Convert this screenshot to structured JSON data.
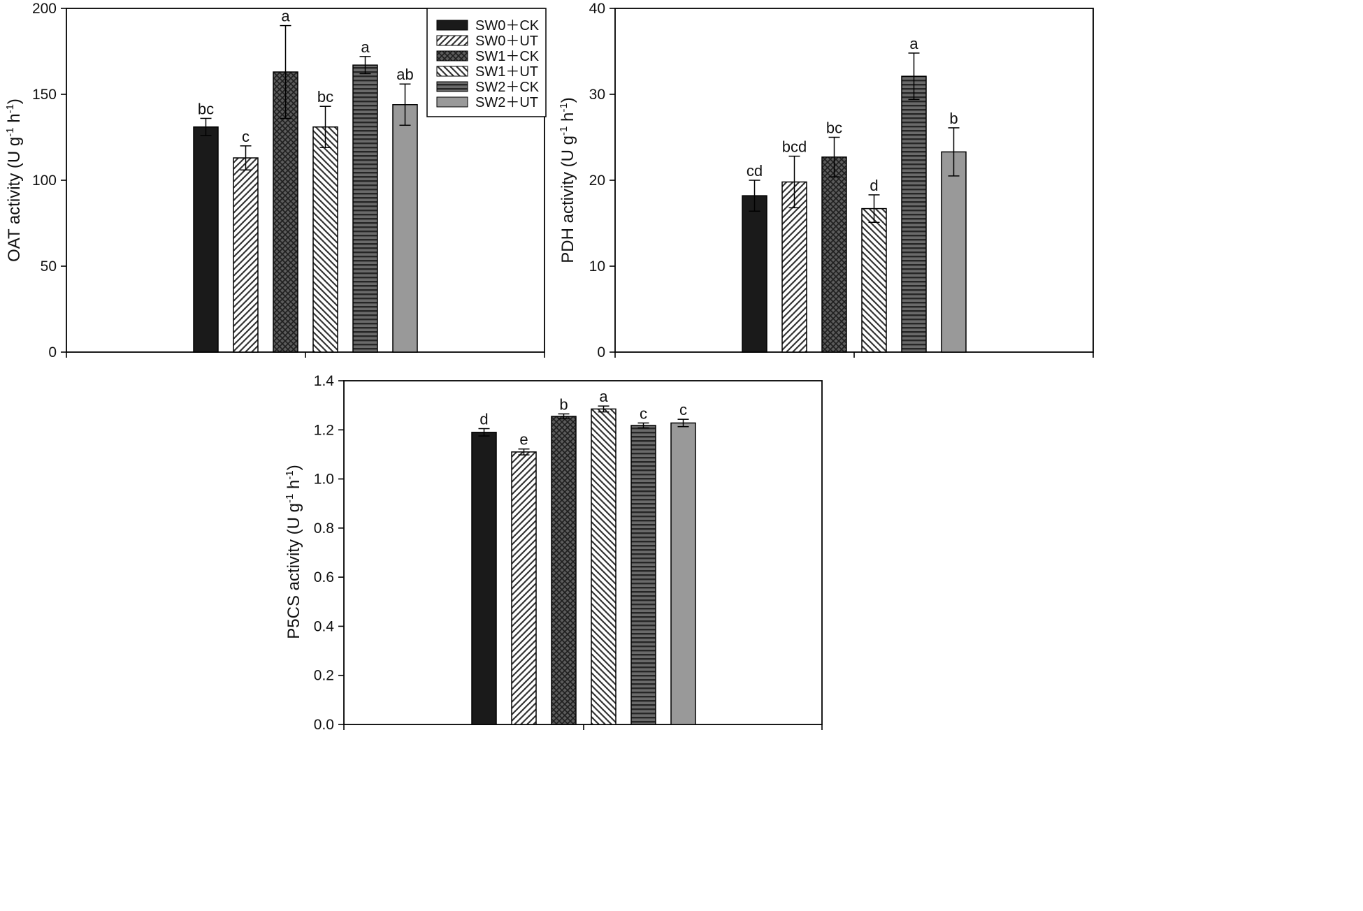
{
  "legend": {
    "entries": [
      {
        "label": "SW0＋CK",
        "pattern": "solid-black"
      },
      {
        "label": "SW0＋UT",
        "pattern": "diag-fwd"
      },
      {
        "label": "SW1＋CK",
        "pattern": "crosshatch"
      },
      {
        "label": "SW1＋UT",
        "pattern": "diag-back"
      },
      {
        "label": "SW2＋CK",
        "pattern": "horizontal"
      },
      {
        "label": "SW2＋UT",
        "pattern": "solid-gray"
      }
    ]
  },
  "chart_data": [
    {
      "type": "bar",
      "id": "oat",
      "ylabel": "OAT activity (U g-1 h-1)",
      "ylabel_parts": {
        "main": "OAT activity (U g",
        "sup1": "-1",
        "mid": " h",
        "sup2": "-1",
        "end": ")"
      },
      "ylim": [
        0,
        200
      ],
      "yticks": [
        "0",
        "50",
        "100",
        "150",
        "200"
      ],
      "ytick_values": [
        0,
        50,
        100,
        150,
        200
      ],
      "categories": [
        "SW0＋CK",
        "SW0＋UT",
        "SW1＋CK",
        "SW1＋UT",
        "SW2＋CK",
        "SW2＋UT"
      ],
      "values": [
        131,
        113,
        163,
        131,
        167,
        144
      ],
      "errors": [
        5,
        7,
        27,
        12,
        5,
        12
      ],
      "letters": [
        "bc",
        "c",
        "a",
        "bc",
        "a",
        "ab"
      ]
    },
    {
      "type": "bar",
      "id": "pdh",
      "ylabel": "PDH activity (U g-1 h-1)",
      "ylabel_parts": {
        "main": "PDH activity (U g",
        "sup1": "-1",
        "mid": " h",
        "sup2": "-1",
        "end": ")"
      },
      "ylim": [
        0,
        40
      ],
      "yticks": [
        "0",
        "10",
        "20",
        "30",
        "40"
      ],
      "ytick_values": [
        0,
        10,
        20,
        30,
        40
      ],
      "categories": [
        "SW0＋CK",
        "SW0＋UT",
        "SW1＋CK",
        "SW1＋UT",
        "SW2＋CK",
        "SW2＋UT"
      ],
      "values": [
        18.2,
        19.8,
        22.7,
        16.7,
        32.1,
        23.3
      ],
      "errors": [
        1.8,
        3.0,
        2.3,
        1.6,
        2.7,
        2.8
      ],
      "letters": [
        "cd",
        "bcd",
        "bc",
        "d",
        "a",
        "b"
      ]
    },
    {
      "type": "bar",
      "id": "p5cs",
      "ylabel": "P5CS activity (U g-1 h-1)",
      "ylabel_parts": {
        "main": "P5CS activity (U g",
        "sup1": "-1",
        "mid": " h",
        "sup2": "-1",
        "end": ")"
      },
      "ylim": [
        0,
        1.4
      ],
      "yticks": [
        "0.0",
        "0.2",
        "0.4",
        "0.6",
        "0.8",
        "1.0",
        "1.2",
        "1.4"
      ],
      "ytick_values": [
        0,
        0.2,
        0.4,
        0.6,
        0.8,
        1.0,
        1.2,
        1.4
      ],
      "categories": [
        "SW0＋CK",
        "SW0＋UT",
        "SW1＋CK",
        "SW1＋UT",
        "SW2＋CK",
        "SW2＋UT"
      ],
      "values": [
        1.19,
        1.11,
        1.255,
        1.285,
        1.218,
        1.228
      ],
      "errors": [
        0.015,
        0.012,
        0.01,
        0.012,
        0.01,
        0.015
      ],
      "letters": [
        "d",
        "e",
        "b",
        "a",
        "c",
        "c"
      ]
    }
  ]
}
